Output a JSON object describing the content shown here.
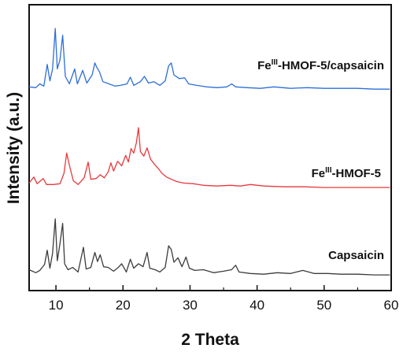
{
  "chart_data": {
    "type": "line",
    "xlabel": "2 Theta",
    "ylabel": "Intensity (a.u.)",
    "xlim": [
      6,
      60
    ],
    "xticks": [
      10,
      20,
      30,
      40,
      50,
      60
    ],
    "y_tick_labels": false,
    "grid": false,
    "legend": "none",
    "series": [
      {
        "name": "Capsaicin",
        "label_main": "Capsaicin",
        "color": "#3c3c3c",
        "points": [
          [
            6,
            0.1
          ],
          [
            7,
            0.06
          ],
          [
            7.6,
            0.09
          ],
          [
            8.3,
            0.17
          ],
          [
            8.7,
            0.36
          ],
          [
            9.1,
            0.12
          ],
          [
            9.5,
            0.32
          ],
          [
            9.9,
            0.78
          ],
          [
            10.2,
            0.22
          ],
          [
            10.6,
            0.45
          ],
          [
            11.0,
            0.72
          ],
          [
            11.3,
            0.18
          ],
          [
            11.8,
            0.1
          ],
          [
            12.5,
            0.13
          ],
          [
            13.3,
            0.07
          ],
          [
            14.1,
            0.4
          ],
          [
            14.5,
            0.11
          ],
          [
            15.2,
            0.13
          ],
          [
            15.8,
            0.33
          ],
          [
            16.2,
            0.21
          ],
          [
            16.6,
            0.3
          ],
          [
            17.1,
            0.14
          ],
          [
            17.8,
            0.13
          ],
          [
            18.6,
            0.08
          ],
          [
            19.3,
            0.13
          ],
          [
            19.8,
            0.18
          ],
          [
            20.5,
            0.07
          ],
          [
            21.1,
            0.24
          ],
          [
            21.6,
            0.12
          ],
          [
            22.3,
            0.18
          ],
          [
            23.0,
            0.14
          ],
          [
            23.6,
            0.33
          ],
          [
            24.0,
            0.12
          ],
          [
            24.8,
            0.1
          ],
          [
            25.5,
            0.07
          ],
          [
            26.3,
            0.13
          ],
          [
            26.8,
            0.42
          ],
          [
            27.2,
            0.37
          ],
          [
            27.6,
            0.2
          ],
          [
            28.2,
            0.26
          ],
          [
            28.8,
            0.14
          ],
          [
            29.4,
            0.27
          ],
          [
            29.9,
            0.12
          ],
          [
            30.7,
            0.09
          ],
          [
            32.0,
            0.1
          ],
          [
            33.5,
            0.06
          ],
          [
            35.0,
            0.08
          ],
          [
            36.2,
            0.1
          ],
          [
            36.8,
            0.16
          ],
          [
            37.3,
            0.07
          ],
          [
            39.0,
            0.05
          ],
          [
            41.0,
            0.04
          ],
          [
            43.0,
            0.06
          ],
          [
            45.0,
            0.05
          ],
          [
            46.8,
            0.09
          ],
          [
            48.5,
            0.05
          ],
          [
            50.5,
            0.05
          ],
          [
            52.5,
            0.04
          ],
          [
            55.0,
            0.04
          ],
          [
            57.5,
            0.03
          ],
          [
            59.8,
            0.03
          ]
        ]
      },
      {
        "name": "Fe(III)-HMOF-5",
        "label_main": "Fe",
        "label_sup": "III",
        "label_rest": "-HMOF-5",
        "color": "#e8383d",
        "points": [
          [
            6,
            0.08
          ],
          [
            6.7,
            0.16
          ],
          [
            7.2,
            0.07
          ],
          [
            8.1,
            0.14
          ],
          [
            8.6,
            0.06
          ],
          [
            9.6,
            0.06
          ],
          [
            10.6,
            0.07
          ],
          [
            11.2,
            0.21
          ],
          [
            11.6,
            0.48
          ],
          [
            12.0,
            0.32
          ],
          [
            12.6,
            0.11
          ],
          [
            13.3,
            0.06
          ],
          [
            14.2,
            0.15
          ],
          [
            14.8,
            0.36
          ],
          [
            15.2,
            0.13
          ],
          [
            16.0,
            0.14
          ],
          [
            16.6,
            0.19
          ],
          [
            17.2,
            0.15
          ],
          [
            17.8,
            0.23
          ],
          [
            18.2,
            0.35
          ],
          [
            18.6,
            0.24
          ],
          [
            19.2,
            0.37
          ],
          [
            19.8,
            0.31
          ],
          [
            20.4,
            0.45
          ],
          [
            20.8,
            0.36
          ],
          [
            21.2,
            0.54
          ],
          [
            21.6,
            0.48
          ],
          [
            22.0,
            0.62
          ],
          [
            22.3,
            0.82
          ],
          [
            22.6,
            0.5
          ],
          [
            23.1,
            0.44
          ],
          [
            23.6,
            0.55
          ],
          [
            24.1,
            0.4
          ],
          [
            24.7,
            0.33
          ],
          [
            25.3,
            0.27
          ],
          [
            25.8,
            0.21
          ],
          [
            26.5,
            0.16
          ],
          [
            27.2,
            0.13
          ],
          [
            28.0,
            0.1
          ],
          [
            29.0,
            0.08
          ],
          [
            30.5,
            0.07
          ],
          [
            32.0,
            0.05
          ],
          [
            34.0,
            0.04
          ],
          [
            36.0,
            0.05
          ],
          [
            37.5,
            0.04
          ],
          [
            39.0,
            0.06
          ],
          [
            41.0,
            0.04
          ],
          [
            44.0,
            0.03
          ],
          [
            47.0,
            0.03
          ],
          [
            50.0,
            0.02
          ],
          [
            54.0,
            0.02
          ],
          [
            57.0,
            0.02
          ],
          [
            59.8,
            0.02
          ]
        ]
      },
      {
        "name": "Fe(III)-HMOF-5/capsaicin",
        "label_main": "Fe",
        "label_sup": "III",
        "label_rest": "-HMOF-5/capsaicin",
        "color": "#2d6ed8",
        "points": [
          [
            6,
            0.06
          ],
          [
            7,
            0.05
          ],
          [
            7.6,
            0.1
          ],
          [
            8.2,
            0.07
          ],
          [
            8.7,
            0.36
          ],
          [
            9.1,
            0.14
          ],
          [
            9.5,
            0.3
          ],
          [
            9.9,
            0.84
          ],
          [
            10.2,
            0.3
          ],
          [
            10.6,
            0.42
          ],
          [
            11.0,
            0.75
          ],
          [
            11.4,
            0.2
          ],
          [
            12.0,
            0.1
          ],
          [
            12.8,
            0.3
          ],
          [
            13.2,
            0.1
          ],
          [
            14.0,
            0.28
          ],
          [
            14.6,
            0.11
          ],
          [
            15.4,
            0.22
          ],
          [
            15.8,
            0.38
          ],
          [
            16.1,
            0.32
          ],
          [
            16.5,
            0.26
          ],
          [
            17.0,
            0.13
          ],
          [
            17.9,
            0.1
          ],
          [
            18.8,
            0.07
          ],
          [
            19.6,
            0.08
          ],
          [
            20.6,
            0.1
          ],
          [
            21.1,
            0.19
          ],
          [
            21.6,
            0.08
          ],
          [
            22.6,
            0.13
          ],
          [
            23.2,
            0.2
          ],
          [
            23.8,
            0.11
          ],
          [
            24.6,
            0.13
          ],
          [
            25.5,
            0.08
          ],
          [
            26.3,
            0.14
          ],
          [
            26.8,
            0.34
          ],
          [
            27.2,
            0.38
          ],
          [
            27.6,
            0.22
          ],
          [
            28.4,
            0.17
          ],
          [
            29.2,
            0.18
          ],
          [
            29.8,
            0.1
          ],
          [
            31.0,
            0.08
          ],
          [
            32.5,
            0.06
          ],
          [
            34.0,
            0.05
          ],
          [
            35.5,
            0.06
          ],
          [
            36.2,
            0.1
          ],
          [
            36.8,
            0.06
          ],
          [
            38.5,
            0.05
          ],
          [
            40.5,
            0.04
          ],
          [
            42.5,
            0.06
          ],
          [
            45.0,
            0.04
          ],
          [
            47.5,
            0.05
          ],
          [
            50.0,
            0.04
          ],
          [
            52.5,
            0.04
          ],
          [
            55.0,
            0.04
          ],
          [
            57.5,
            0.03
          ],
          [
            59.8,
            0.03
          ]
        ]
      }
    ]
  }
}
